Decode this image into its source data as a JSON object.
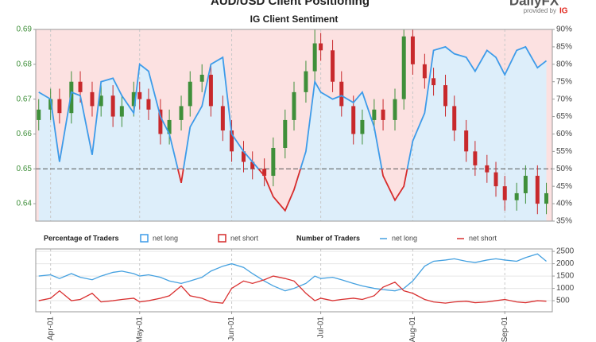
{
  "header": {
    "title": "AUD/USD Client Positioning",
    "logo": "DailyFX",
    "logo_sub": "provided by",
    "logo_brand": "IG"
  },
  "chart_data": [
    {
      "type": "candlestick",
      "subtitle": "IG Client Sentiment",
      "x": [
        "Mar-28",
        "Apr-01",
        "Apr-04",
        "Apr-08",
        "Apr-11",
        "Apr-15",
        "Apr-18",
        "Apr-22",
        "Apr-25",
        "Apr-29",
        "May-01",
        "May-04",
        "May-08",
        "May-11",
        "May-15",
        "May-18",
        "May-22",
        "May-25",
        "May-29",
        "Jun-01",
        "Jun-05",
        "Jun-08",
        "Jun-12",
        "Jun-15",
        "Jun-19",
        "Jun-22",
        "Jun-26",
        "Jun-29",
        "Jul-01",
        "Jul-05",
        "Jul-08",
        "Jul-12",
        "Jul-15",
        "Jul-19",
        "Jul-22",
        "Jul-26",
        "Jul-29",
        "Aug-01",
        "Aug-05",
        "Aug-08",
        "Aug-12",
        "Aug-15",
        "Aug-19",
        "Aug-22",
        "Aug-26",
        "Aug-29",
        "Sep-01",
        "Sep-05",
        "Sep-08",
        "Sep-12",
        "Sep-15"
      ],
      "xlim": [
        "Mar-27",
        "Sep-17"
      ],
      "open": [
        0.664,
        0.667,
        0.67,
        0.666,
        0.675,
        0.672,
        0.668,
        0.671,
        0.665,
        0.668,
        0.672,
        0.67,
        0.667,
        0.66,
        0.664,
        0.668,
        0.675,
        0.677,
        0.668,
        0.661,
        0.655,
        0.652,
        0.65,
        0.648,
        0.656,
        0.664,
        0.672,
        0.678,
        0.686,
        0.684,
        0.675,
        0.668,
        0.66,
        0.664,
        0.667,
        0.664,
        0.67,
        0.688,
        0.68,
        0.676,
        0.674,
        0.668,
        0.661,
        0.655,
        0.651,
        0.649,
        0.645,
        0.641,
        0.643,
        0.648,
        0.64
      ],
      "high": [
        0.67,
        0.673,
        0.673,
        0.678,
        0.678,
        0.675,
        0.674,
        0.674,
        0.671,
        0.675,
        0.675,
        0.673,
        0.67,
        0.667,
        0.671,
        0.678,
        0.68,
        0.68,
        0.671,
        0.664,
        0.658,
        0.655,
        0.653,
        0.659,
        0.667,
        0.675,
        0.681,
        0.69,
        0.689,
        0.687,
        0.678,
        0.671,
        0.667,
        0.67,
        0.67,
        0.673,
        0.69,
        0.69,
        0.683,
        0.679,
        0.677,
        0.671,
        0.664,
        0.658,
        0.654,
        0.652,
        0.648,
        0.646,
        0.651,
        0.651,
        0.646
      ],
      "low": [
        0.661,
        0.664,
        0.663,
        0.663,
        0.669,
        0.665,
        0.665,
        0.662,
        0.662,
        0.665,
        0.667,
        0.664,
        0.657,
        0.657,
        0.661,
        0.665,
        0.672,
        0.665,
        0.658,
        0.652,
        0.649,
        0.647,
        0.645,
        0.645,
        0.653,
        0.661,
        0.669,
        0.675,
        0.681,
        0.672,
        0.665,
        0.657,
        0.657,
        0.661,
        0.661,
        0.661,
        0.667,
        0.677,
        0.673,
        0.671,
        0.665,
        0.658,
        0.652,
        0.648,
        0.646,
        0.642,
        0.638,
        0.638,
        0.64,
        0.637,
        0.637
      ],
      "close": [
        0.667,
        0.67,
        0.666,
        0.675,
        0.672,
        0.668,
        0.671,
        0.665,
        0.668,
        0.672,
        0.67,
        0.667,
        0.66,
        0.664,
        0.668,
        0.675,
        0.677,
        0.668,
        0.661,
        0.655,
        0.652,
        0.65,
        0.648,
        0.656,
        0.664,
        0.672,
        0.678,
        0.686,
        0.684,
        0.675,
        0.668,
        0.66,
        0.664,
        0.667,
        0.664,
        0.67,
        0.688,
        0.68,
        0.676,
        0.674,
        0.668,
        0.661,
        0.655,
        0.651,
        0.649,
        0.645,
        0.641,
        0.643,
        0.648,
        0.64,
        0.643
      ],
      "up_color": "#3f8f3a",
      "down_color": "#c8292c",
      "ylim": [
        0.635,
        0.69
      ],
      "yticks": [
        0.64,
        0.65,
        0.66,
        0.67,
        0.68,
        0.69
      ],
      "y2lim": [
        35,
        90
      ],
      "y2ticks": [
        {
          "value": 35,
          "label": "35%"
        },
        {
          "value": 40,
          "label": "40%"
        },
        {
          "value": 45,
          "label": "45%"
        },
        {
          "value": 50,
          "label": "50%"
        },
        {
          "value": 55,
          "label": "55%"
        },
        {
          "value": 60,
          "label": "60%"
        },
        {
          "value": 65,
          "label": "65%"
        },
        {
          "value": 70,
          "label": "70%"
        },
        {
          "value": 75,
          "label": "75%"
        },
        {
          "value": 80,
          "label": "80%"
        },
        {
          "value": 85,
          "label": "85%"
        },
        {
          "value": 90,
          "label": "90%"
        }
      ],
      "reference_line": 50,
      "legend_title": "Percentage of Traders",
      "legend": [
        {
          "name": "net long",
          "color": "#3d9be9",
          "fill": "#ddeefa"
        },
        {
          "name": "net short",
          "color": "#d62b2b",
          "fill": "#fce1e1"
        }
      ],
      "series": [
        {
          "name": "net long",
          "axis": "y2",
          "values": [
            72,
            70,
            52,
            72,
            71,
            54,
            75,
            76,
            71,
            66,
            80,
            78,
            65,
            60,
            46,
            62,
            68,
            80,
            82,
            60,
            55,
            52,
            48,
            42,
            38,
            44,
            55,
            75,
            72,
            70,
            71,
            69,
            72,
            62,
            48,
            41,
            45,
            58,
            66,
            84,
            85,
            83,
            82,
            78,
            84,
            82,
            77,
            84,
            85,
            79,
            81
          ]
        }
      ],
      "grid": true
    },
    {
      "type": "line",
      "legend_title": "Number of Traders",
      "xticks": [
        "Apr-01",
        "May-01",
        "Jun-01",
        "Jul-01",
        "Aug-01",
        "Sep-01"
      ],
      "ylim": [
        50,
        2600
      ],
      "yticks": [
        500,
        1000,
        1500,
        2000,
        2500
      ],
      "series": [
        {
          "name": "net long",
          "color": "#45a1e0",
          "values": [
            1500,
            1550,
            1400,
            1600,
            1450,
            1350,
            1500,
            1650,
            1700,
            1600,
            1500,
            1550,
            1450,
            1300,
            1200,
            1300,
            1450,
            1700,
            1900,
            2000,
            1850,
            1600,
            1300,
            1100,
            900,
            1000,
            1200,
            1500,
            1400,
            1450,
            1350,
            1200,
            1100,
            1000,
            950,
            900,
            1000,
            1300,
            1900,
            2100,
            2150,
            2200,
            2100,
            2050,
            2150,
            2200,
            2150,
            2100,
            2250,
            2400,
            2100
          ]
        },
        {
          "name": "net short",
          "color": "#d93030",
          "values": [
            500,
            600,
            900,
            500,
            550,
            800,
            450,
            500,
            550,
            600,
            450,
            500,
            600,
            700,
            1100,
            700,
            600,
            450,
            400,
            1000,
            1300,
            1200,
            1350,
            1500,
            1400,
            1300,
            800,
            500,
            600,
            500,
            550,
            600,
            550,
            700,
            1050,
            1250,
            900,
            800,
            550,
            450,
            400,
            450,
            480,
            420,
            450,
            500,
            550,
            450,
            420,
            500,
            480
          ]
        }
      ],
      "grid": true
    }
  ]
}
